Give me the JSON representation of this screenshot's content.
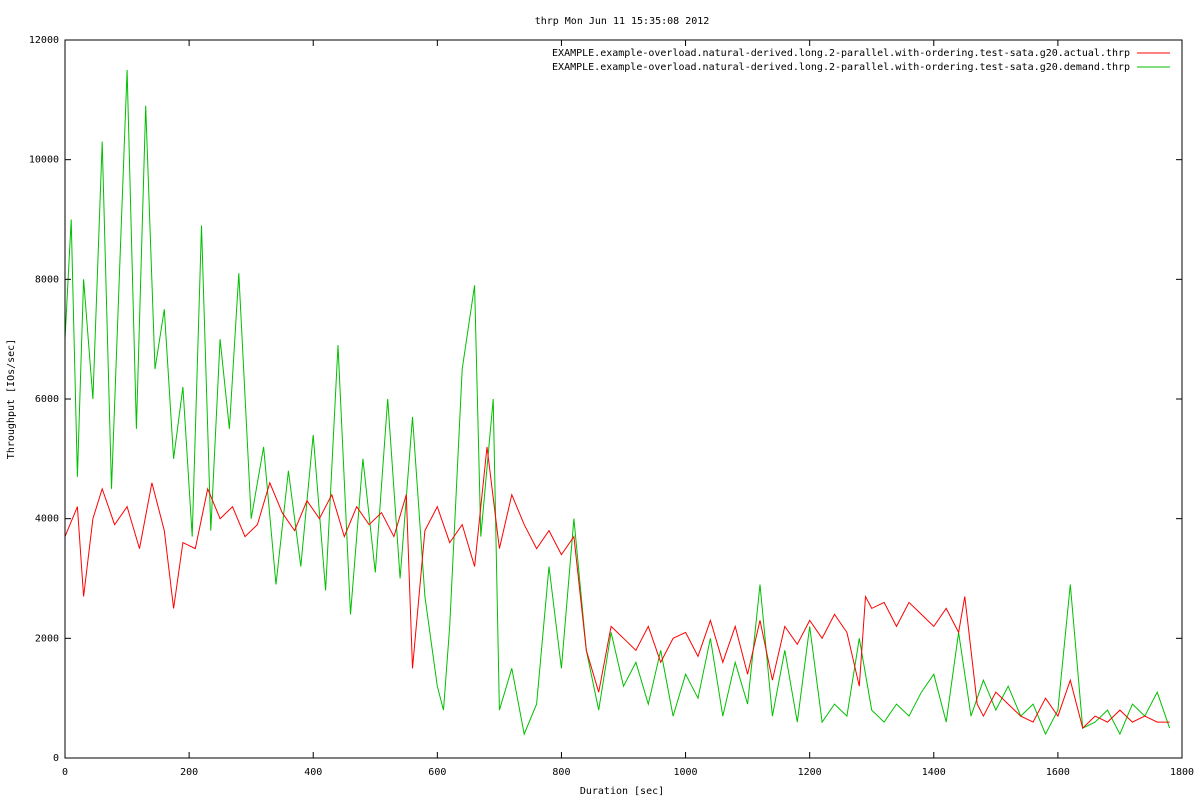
{
  "chart_data": {
    "type": "line",
    "title": "thrp Mon Jun 11 15:35:08 2012",
    "xlabel": "Duration [sec]",
    "ylabel": "Throughput [IOs/sec]",
    "xlim": [
      0,
      1800
    ],
    "ylim": [
      0,
      12000
    ],
    "x_ticks": [
      0,
      200,
      400,
      600,
      800,
      1000,
      1200,
      1400,
      1600,
      1800
    ],
    "y_ticks": [
      0,
      2000,
      4000,
      6000,
      8000,
      10000,
      12000
    ],
    "grid": false,
    "legend_position": "top-right",
    "series": [
      {
        "name": "EXAMPLE.example-overload.natural-derived.long.2-parallel.with-ordering.test-sata.g20.actual.thrp",
        "color": "#ff0000",
        "x": [
          0,
          20,
          30,
          45,
          60,
          80,
          100,
          120,
          140,
          160,
          175,
          190,
          210,
          230,
          250,
          270,
          290,
          310,
          330,
          350,
          370,
          390,
          410,
          430,
          450,
          470,
          490,
          510,
          530,
          550,
          560,
          580,
          600,
          620,
          640,
          660,
          680,
          700,
          720,
          740,
          760,
          780,
          800,
          820,
          840,
          860,
          880,
          900,
          920,
          940,
          960,
          980,
          1000,
          1020,
          1040,
          1060,
          1080,
          1100,
          1120,
          1140,
          1160,
          1180,
          1200,
          1220,
          1240,
          1260,
          1280,
          1290,
          1300,
          1320,
          1340,
          1360,
          1380,
          1400,
          1420,
          1440,
          1450,
          1470,
          1480,
          1500,
          1520,
          1540,
          1560,
          1580,
          1600,
          1620,
          1640,
          1660,
          1680,
          1700,
          1720,
          1740,
          1760,
          1780
        ],
        "values": [
          3700,
          4200,
          2700,
          4000,
          4500,
          3900,
          4200,
          3500,
          4600,
          3800,
          2500,
          3600,
          3500,
          4500,
          4000,
          4200,
          3700,
          3900,
          4600,
          4100,
          3800,
          4300,
          4000,
          4400,
          3700,
          4200,
          3900,
          4100,
          3700,
          4400,
          1500,
          3800,
          4200,
          3600,
          3900,
          3200,
          5200,
          3500,
          4400,
          3900,
          3500,
          3800,
          3400,
          3700,
          1800,
          1100,
          2200,
          2000,
          1800,
          2200,
          1600,
          2000,
          2100,
          1700,
          2300,
          1600,
          2200,
          1400,
          2300,
          1300,
          2200,
          1900,
          2300,
          2000,
          2400,
          2100,
          1200,
          2700,
          2500,
          2600,
          2200,
          2600,
          2400,
          2200,
          2500,
          2100,
          2700,
          900,
          700,
          1100,
          900,
          700,
          600,
          1000,
          700,
          1300,
          500,
          700,
          600,
          800,
          600,
          700,
          600,
          600
        ]
      },
      {
        "name": "EXAMPLE.example-overload.natural-derived.long.2-parallel.with-ordering.test-sata.g20.demand.thrp",
        "color": "#00c000",
        "x": [
          0,
          10,
          20,
          30,
          45,
          60,
          75,
          90,
          100,
          115,
          130,
          145,
          160,
          175,
          190,
          205,
          220,
          235,
          250,
          265,
          280,
          300,
          320,
          340,
          360,
          380,
          400,
          420,
          440,
          460,
          480,
          500,
          520,
          540,
          560,
          580,
          600,
          610,
          620,
          640,
          660,
          670,
          690,
          700,
          720,
          740,
          760,
          780,
          800,
          820,
          840,
          860,
          880,
          900,
          920,
          940,
          960,
          980,
          1000,
          1020,
          1040,
          1060,
          1080,
          1100,
          1120,
          1140,
          1160,
          1180,
          1200,
          1220,
          1240,
          1260,
          1280,
          1300,
          1320,
          1340,
          1360,
          1380,
          1400,
          1420,
          1440,
          1460,
          1480,
          1500,
          1520,
          1540,
          1560,
          1580,
          1600,
          1620,
          1640,
          1660,
          1680,
          1700,
          1720,
          1740,
          1760,
          1780
        ],
        "values": [
          7000,
          9000,
          4700,
          8000,
          6000,
          10300,
          4500,
          8700,
          11500,
          5500,
          10900,
          6500,
          7500,
          5000,
          6200,
          3700,
          8900,
          3800,
          7000,
          5500,
          8100,
          4000,
          5200,
          2900,
          4800,
          3200,
          5400,
          2800,
          6900,
          2400,
          5000,
          3100,
          6000,
          3000,
          5700,
          2700,
          1200,
          800,
          2200,
          6500,
          7900,
          3700,
          6000,
          800,
          1500,
          400,
          900,
          3200,
          1500,
          4000,
          1800,
          800,
          2100,
          1200,
          1600,
          900,
          1800,
          700,
          1400,
          1000,
          2000,
          700,
          1600,
          900,
          2900,
          700,
          1800,
          600,
          2200,
          600,
          900,
          700,
          2000,
          800,
          600,
          900,
          700,
          1100,
          1400,
          600,
          2100,
          700,
          1300,
          800,
          1200,
          700,
          900,
          400,
          800,
          2900,
          500,
          600,
          800,
          400,
          900,
          700,
          1100,
          500
        ]
      }
    ]
  }
}
